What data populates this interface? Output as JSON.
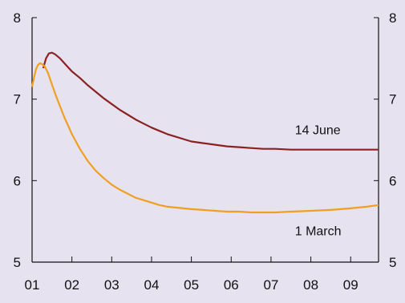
{
  "colors": {
    "background": "#e6e2ef",
    "axis": "#111111",
    "june_line": "#8b2222",
    "march_line": "#f0a020"
  },
  "chart_data": {
    "type": "line",
    "title": "",
    "xlabel": "",
    "ylabel": "",
    "x_ticks": [
      "01",
      "02",
      "03",
      "04",
      "05",
      "06",
      "07",
      "08",
      "09"
    ],
    "y_ticks": [
      5,
      6,
      7,
      8
    ],
    "xlim": [
      2001.0,
      2009.7
    ],
    "ylim": [
      5,
      8
    ],
    "grid": false,
    "legend": "inline labels",
    "series": [
      {
        "name": "14 June",
        "color": "#8b2222",
        "x": [
          2001.28,
          2001.35,
          2001.42,
          2001.5,
          2001.58,
          2001.7,
          2001.85,
          2002.0,
          2002.2,
          2002.4,
          2002.6,
          2002.8,
          2003.0,
          2003.2,
          2003.4,
          2003.6,
          2003.8,
          2004.0,
          2004.2,
          2004.4,
          2004.6,
          2004.8,
          2005.0,
          2005.3,
          2005.6,
          2005.9,
          2006.2,
          2006.5,
          2006.8,
          2007.1,
          2007.5,
          2008.0,
          2008.5,
          2009.0,
          2009.7
        ],
        "y": [
          7.38,
          7.5,
          7.56,
          7.57,
          7.55,
          7.5,
          7.42,
          7.34,
          7.26,
          7.17,
          7.09,
          7.01,
          6.94,
          6.87,
          6.81,
          6.75,
          6.7,
          6.65,
          6.61,
          6.57,
          6.54,
          6.51,
          6.48,
          6.46,
          6.44,
          6.42,
          6.41,
          6.4,
          6.39,
          6.39,
          6.38,
          6.38,
          6.38,
          6.38,
          6.38
        ]
      },
      {
        "name": "1 March",
        "color": "#f0a020",
        "x": [
          2001.0,
          2001.05,
          2001.1,
          2001.15,
          2001.2,
          2001.25,
          2001.32,
          2001.4,
          2001.5,
          2001.6,
          2001.8,
          2002.0,
          2002.2,
          2002.4,
          2002.6,
          2002.8,
          2003.0,
          2003.2,
          2003.4,
          2003.6,
          2003.8,
          2004.0,
          2004.2,
          2004.4,
          2004.6,
          2004.8,
          2005.0,
          2005.3,
          2005.6,
          2005.9,
          2006.2,
          2006.5,
          2006.8,
          2007.1,
          2007.5,
          2008.0,
          2008.5,
          2009.0,
          2009.4,
          2009.7
        ],
        "y": [
          7.15,
          7.27,
          7.37,
          7.42,
          7.44,
          7.43,
          7.4,
          7.32,
          7.18,
          7.04,
          6.79,
          6.57,
          6.39,
          6.24,
          6.12,
          6.03,
          5.95,
          5.89,
          5.84,
          5.79,
          5.76,
          5.73,
          5.7,
          5.68,
          5.67,
          5.66,
          5.65,
          5.64,
          5.63,
          5.62,
          5.62,
          5.61,
          5.61,
          5.61,
          5.62,
          5.63,
          5.64,
          5.66,
          5.68,
          5.7
        ]
      }
    ],
    "annotations": [
      {
        "text": "14 June",
        "x": 2007.6,
        "y": 6.57
      },
      {
        "text": "1 March",
        "x": 2007.6,
        "y": 5.33
      }
    ]
  }
}
